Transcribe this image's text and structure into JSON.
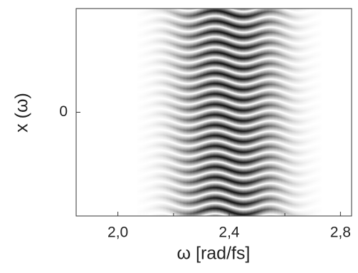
{
  "chart_data": {
    "type": "image",
    "x_label": "ω [rad/fs]",
    "y_label": "x (ω)",
    "xlim": [
      1.85,
      2.84
    ],
    "ylim": [
      -1,
      1
    ],
    "xticks": [
      {
        "value": 2.0,
        "label": "2,0"
      },
      {
        "value": 2.4,
        "label": "2,4"
      },
      {
        "value": 2.8,
        "label": "2,8"
      }
    ],
    "xminorticks": [
      2.2,
      2.6
    ],
    "yticks": [
      0
    ],
    "colormap": "gray_r"
  }
}
